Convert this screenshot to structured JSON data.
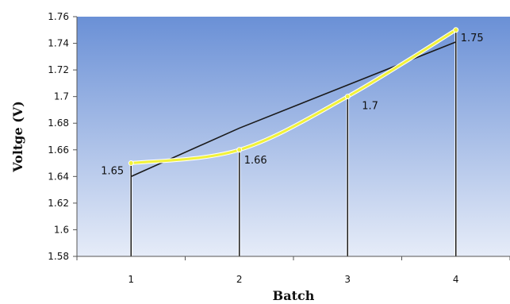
{
  "chart_data": {
    "type": "line",
    "categories": [
      "1",
      "2",
      "3",
      "4"
    ],
    "x": [
      1,
      2,
      3,
      4
    ],
    "series": [
      {
        "values": [
          1.65,
          1.66,
          1.7,
          1.75
        ],
        "color": "#f2f23a",
        "style": "line-with-drop-lines"
      },
      {
        "values": [
          1.64,
          1.6763,
          1.7087,
          1.741
        ],
        "color": "#1a1a1a",
        "style": "linear-trendline"
      }
    ],
    "data_labels": [
      "1.65",
      "1.66",
      "1.7",
      "1.75"
    ],
    "xlabel": "Batch",
    "ylabel": "Voltge (V)",
    "ylim": [
      1.58,
      1.76
    ],
    "yticks": [
      "1.58",
      "1.6",
      "1.62",
      "1.64",
      "1.66",
      "1.68",
      "1.7",
      "1.72",
      "1.74",
      "1.76"
    ],
    "plot_background": {
      "top": "#6a90d6",
      "bottom": "#e6ecf8"
    },
    "grid": false,
    "legend": "none"
  }
}
